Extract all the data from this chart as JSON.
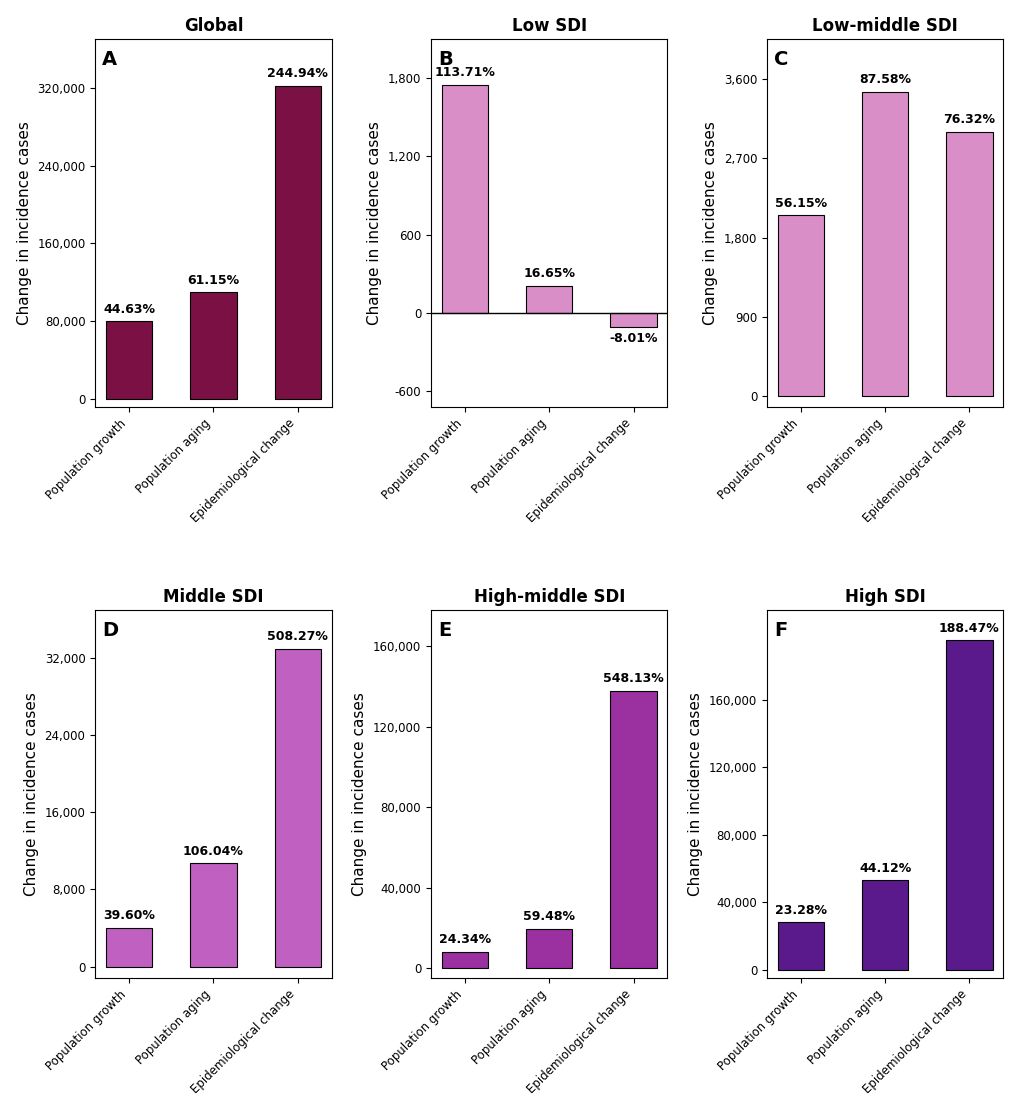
{
  "panels": [
    {
      "label": "A",
      "title": "Global",
      "categories": [
        "Population growth",
        "Population aging",
        "Epidemiological change"
      ],
      "values": [
        80000,
        110000,
        322000
      ],
      "percentages": [
        "44.63%",
        "61.15%",
        "244.94%"
      ],
      "bar_color": "#7B1045",
      "yticks": [
        0,
        80000,
        160000,
        240000,
        320000
      ],
      "ytick_labels": [
        "0",
        "80,000",
        "160,000",
        "240,000",
        "320,000"
      ],
      "ylim": [
        -8000,
        370000
      ]
    },
    {
      "label": "B",
      "title": "Low SDI",
      "categories": [
        "Population growth",
        "Population aging",
        "Epidemiological change"
      ],
      "values": [
        1750,
        210,
        -105
      ],
      "percentages": [
        "113.71%",
        "16.65%",
        "-8.01%"
      ],
      "bar_color": "#DA8EC8",
      "yticks": [
        -600,
        0,
        600,
        1200,
        1800
      ],
      "ytick_labels": [
        "-600",
        "0",
        "600",
        "1,200",
        "1,800"
      ],
      "ylim": [
        -720,
        2100
      ]
    },
    {
      "label": "C",
      "title": "Low-middle SDI",
      "categories": [
        "Population growth",
        "Population aging",
        "Epidemiological change"
      ],
      "values": [
        2050,
        3450,
        3000
      ],
      "percentages": [
        "56.15%",
        "87.58%",
        "76.32%"
      ],
      "bar_color": "#DA8EC8",
      "yticks": [
        0,
        900,
        1800,
        2700,
        3600
      ],
      "ytick_labels": [
        "0",
        "900",
        "1,800",
        "2,700",
        "3,600"
      ],
      "ylim": [
        -120,
        4050
      ]
    },
    {
      "label": "D",
      "title": "Middle SDI",
      "categories": [
        "Population growth",
        "Population aging",
        "Epidemiological change"
      ],
      "values": [
        4000,
        10700,
        33000
      ],
      "percentages": [
        "39.60%",
        "106.04%",
        "508.27%"
      ],
      "bar_color": "#C060C0",
      "yticks": [
        0,
        8000,
        16000,
        24000,
        32000
      ],
      "ytick_labels": [
        "0",
        "8,000",
        "16,000",
        "24,000",
        "32,000"
      ],
      "ylim": [
        -1200,
        37000
      ]
    },
    {
      "label": "E",
      "title": "High-middle SDI",
      "categories": [
        "Population growth",
        "Population aging",
        "Epidemiological change"
      ],
      "values": [
        8000,
        19500,
        138000
      ],
      "percentages": [
        "24.34%",
        "59.48%",
        "548.13%"
      ],
      "bar_color": "#9B30A0",
      "yticks": [
        0,
        40000,
        80000,
        120000,
        160000
      ],
      "ytick_labels": [
        "0",
        "40,000",
        "80,000",
        "120,000",
        "160,000"
      ],
      "ylim": [
        -5000,
        178000
      ]
    },
    {
      "label": "F",
      "title": "High SDI",
      "categories": [
        "Population growth",
        "Population aging",
        "Epidemiological change"
      ],
      "values": [
        28000,
        53000,
        195000
      ],
      "percentages": [
        "23.28%",
        "44.12%",
        "188.47%"
      ],
      "bar_color": "#5B1A8B",
      "yticks": [
        0,
        40000,
        80000,
        120000,
        160000
      ],
      "ytick_labels": [
        "0",
        "40,000",
        "80,000",
        "120,000",
        "160,000"
      ],
      "ylim": [
        -5000,
        213000
      ]
    }
  ],
  "ylabel": "Change in incidence cases",
  "label_fontsize": 11,
  "title_fontsize": 12,
  "tick_fontsize": 8.5,
  "annot_fontsize": 9,
  "panel_label_fontsize": 14
}
